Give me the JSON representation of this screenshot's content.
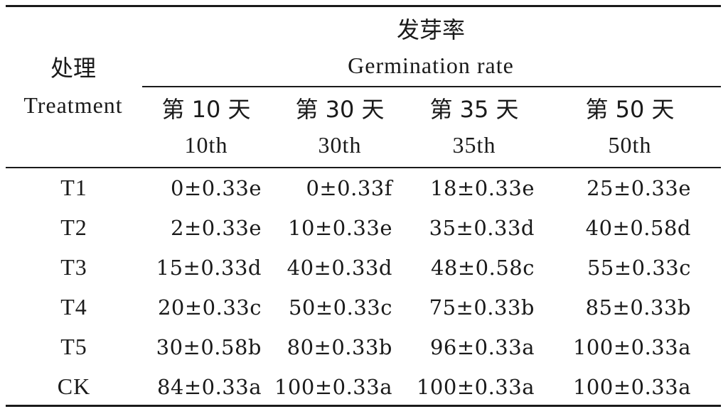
{
  "table": {
    "treatment_header": {
      "zh": "处理",
      "en": "Treatment"
    },
    "rate_header": {
      "zh": "发芽率",
      "en": "Germination rate"
    },
    "days": [
      {
        "zh": "第 10 天",
        "en": "10th"
      },
      {
        "zh": "第 30 天",
        "en": "30th"
      },
      {
        "zh": "第 35 天",
        "en": "35th"
      },
      {
        "zh": "第 50 天",
        "en": "50th"
      }
    ],
    "rows": [
      {
        "treatment": "T1",
        "values": [
          "0±0.33e",
          "0±0.33f",
          "18±0.33e",
          "25±0.33e"
        ]
      },
      {
        "treatment": "T2",
        "values": [
          "2±0.33e",
          "10±0.33e",
          "35±0.33d",
          "40±0.58d"
        ]
      },
      {
        "treatment": "T3",
        "values": [
          "15±0.33d",
          "40±0.33d",
          "48±0.58c",
          "55±0.33c"
        ]
      },
      {
        "treatment": "T4",
        "values": [
          "20±0.33c",
          "50±0.33c",
          "75±0.33b",
          "85±0.33b"
        ]
      },
      {
        "treatment": "T5",
        "values": [
          "30±0.58b",
          "80±0.33b",
          "96±0.33a",
          "100±0.33a"
        ]
      },
      {
        "treatment": "CK",
        "values": [
          "84±0.33a",
          "100±0.33a",
          "100±0.33a",
          "100±0.33a"
        ]
      }
    ]
  }
}
